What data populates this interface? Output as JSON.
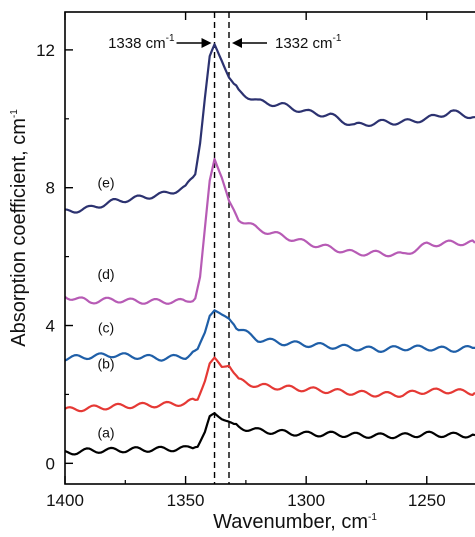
{
  "chart_data": {
    "type": "line",
    "title": "",
    "xlabel": "Wavenumber, cm",
    "xlabel_sup": "-1",
    "ylabel": "Absorption coefficient, cm",
    "ylabel_sup": "-1",
    "x_range": [
      1400,
      1230
    ],
    "x_reversed": true,
    "y_range": [
      -0.6,
      13.1
    ],
    "x_ticks": [
      "1400",
      "1350",
      "1300",
      "1250"
    ],
    "x_tick_values": [
      1400,
      1350,
      1300,
      1250
    ],
    "y_ticks": [
      "0",
      "4",
      "8",
      "12"
    ],
    "y_tick_values": [
      0,
      4,
      8,
      12
    ],
    "grid": false,
    "vlines": [
      1338,
      1332
    ],
    "annotations": [
      {
        "id": "peak-1338",
        "label": "1338 cm",
        "sup": "-1",
        "x": 1338,
        "y": 12.2,
        "side": "left"
      },
      {
        "id": "peak-1332",
        "label": "1332 cm",
        "sup": "-1",
        "x": 1332,
        "y": 12.2,
        "side": "right"
      }
    ],
    "series": [
      {
        "label": "(a)",
        "label_pos": [
          1383,
          0.75
        ],
        "color": "#000000",
        "x": [
          1400,
          1390,
          1380,
          1370,
          1360,
          1350,
          1345,
          1342,
          1340,
          1338,
          1335,
          1332,
          1328,
          1320,
          1310,
          1300,
          1290,
          1280,
          1270,
          1260,
          1250,
          1240,
          1230
        ],
        "y": [
          0.3,
          0.37,
          0.38,
          0.4,
          0.41,
          0.43,
          0.5,
          0.9,
          1.35,
          1.45,
          1.3,
          1.2,
          1.05,
          0.95,
          0.9,
          0.85,
          0.85,
          0.82,
          0.8,
          0.8,
          0.85,
          0.82,
          0.82
        ]
      },
      {
        "label": "(b)",
        "label_pos": [
          1383,
          2.75
        ],
        "color": "#e53935",
        "x": [
          1400,
          1390,
          1380,
          1370,
          1360,
          1350,
          1345,
          1342,
          1340,
          1338,
          1335,
          1332,
          1328,
          1320,
          1310,
          1300,
          1290,
          1280,
          1270,
          1260,
          1250,
          1240,
          1230
        ],
        "y": [
          1.55,
          1.6,
          1.65,
          1.68,
          1.7,
          1.75,
          1.85,
          2.4,
          2.9,
          3.05,
          2.8,
          2.85,
          2.4,
          2.25,
          2.2,
          2.15,
          2.1,
          2.05,
          2.0,
          2.0,
          2.1,
          2.1,
          2.05
        ]
      },
      {
        "label": "(c)",
        "label_pos": [
          1383,
          3.8
        ],
        "color": "#1f5fa8",
        "x": [
          1400,
          1390,
          1380,
          1370,
          1360,
          1350,
          1345,
          1342,
          1340,
          1338,
          1335,
          1332,
          1328,
          1320,
          1310,
          1300,
          1290,
          1280,
          1270,
          1260,
          1250,
          1240,
          1230
        ],
        "y": [
          3.05,
          3.1,
          3.15,
          3.1,
          3.05,
          3.1,
          3.3,
          3.8,
          4.3,
          4.45,
          4.3,
          4.2,
          3.9,
          3.6,
          3.5,
          3.45,
          3.4,
          3.35,
          3.3,
          3.35,
          3.35,
          3.3,
          3.35
        ]
      },
      {
        "label": "(d)",
        "label_pos": [
          1383,
          5.35
        ],
        "color": "#b75bb5",
        "x": [
          1400,
          1390,
          1380,
          1370,
          1360,
          1350,
          1346,
          1344,
          1342,
          1340,
          1338,
          1335,
          1332,
          1328,
          1320,
          1310,
          1300,
          1290,
          1280,
          1270,
          1260,
          1250,
          1240,
          1230
        ],
        "y": [
          4.85,
          4.7,
          4.75,
          4.7,
          4.7,
          4.7,
          4.8,
          5.4,
          6.8,
          8.2,
          8.85,
          8.3,
          7.6,
          7.1,
          6.8,
          6.6,
          6.4,
          6.25,
          6.1,
          6.1,
          6.05,
          6.35,
          6.4,
          6.4
        ]
      },
      {
        "label": "(e)",
        "label_pos": [
          1383,
          8.0
        ],
        "color": "#2c3270",
        "x": [
          1400,
          1390,
          1380,
          1370,
          1360,
          1350,
          1346,
          1344,
          1342,
          1340,
          1338,
          1335,
          1332,
          1328,
          1320,
          1310,
          1300,
          1290,
          1280,
          1270,
          1260,
          1250,
          1240,
          1230
        ],
        "y": [
          7.3,
          7.4,
          7.6,
          7.7,
          7.8,
          8.0,
          8.4,
          9.3,
          10.6,
          11.8,
          12.15,
          11.7,
          11.2,
          10.8,
          10.5,
          10.4,
          10.2,
          10.1,
          9.8,
          9.9,
          9.9,
          10.0,
          10.2,
          10.05
        ]
      }
    ]
  }
}
